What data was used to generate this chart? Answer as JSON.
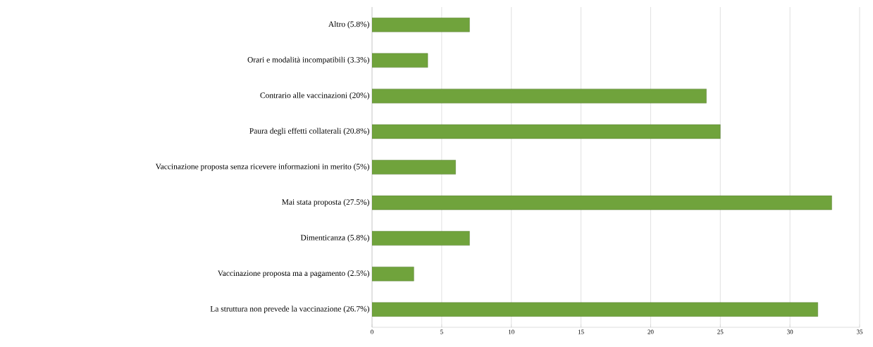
{
  "chart_data": {
    "type": "bar",
    "orientation": "horizontal",
    "categories": [
      "Altro (5.8%)",
      "Orari e modalità incompatibili (3.3%)",
      "Contrario alle vaccinazioni (20%)",
      "Paura degli effetti collaterali (20.8%)",
      "Vaccinazione proposta senza ricevere informazioni in merito  (5%)",
      "Mai stata proposta (27.5%)",
      "Dimenticanza (5.8%)",
      "Vaccinazione proposta ma a pagamento (2.5%)",
      "La struttura non prevede la vaccinazione (26.7%)"
    ],
    "values": [
      7,
      4,
      24,
      25,
      6,
      33,
      7,
      3,
      32
    ],
    "color": "#70a33c",
    "xlim": [
      0,
      35
    ],
    "xticks": [
      0,
      5,
      10,
      15,
      20,
      25,
      30,
      35
    ],
    "grid": "x"
  }
}
